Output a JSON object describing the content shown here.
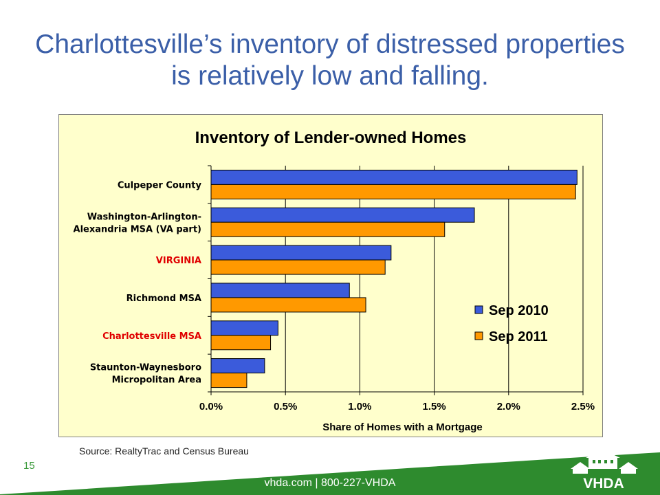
{
  "slide": {
    "title": "Charlottesville’s inventory of distressed properties is relatively low and falling.",
    "source": "Source:  RealtyTrac and Census Bureau",
    "page_number": "15",
    "footer": "vhda.com | 800-227-VHDA",
    "logo_text": "VHDA"
  },
  "colors": {
    "title": "#3b5fa8",
    "chart_bg": "#ffffcc",
    "sep2010": "#3b5bdb",
    "sep2011": "#ff9900",
    "highlight_label": "#e00000",
    "footer_green": "#2e8b2e"
  },
  "chart_data": {
    "type": "bar",
    "orientation": "horizontal",
    "title": "Inventory of Lender-owned Homes",
    "xlabel": "Share of Homes with a Mortgage",
    "ylabel": "",
    "xlim": [
      0,
      0.025
    ],
    "x_ticks": [
      "0.0%",
      "0.5%",
      "1.0%",
      "1.5%",
      "2.0%",
      "2.5%"
    ],
    "grid": "vertical",
    "legend_position": "lower-right inside",
    "categories": [
      "Culpeper County",
      "Washington-Arlington-\nAlexandria MSA (VA part)",
      "VIRGINIA",
      "Richmond MSA",
      "Charlottesville MSA",
      "Staunton-Waynesboro\nMicropolitan Area"
    ],
    "highlighted_categories": [
      "VIRGINIA",
      "Charlottesville MSA"
    ],
    "series": [
      {
        "name": "Sep 2010",
        "values": [
          0.0246,
          0.0177,
          0.0121,
          0.0093,
          0.0045,
          0.0036
        ]
      },
      {
        "name": "Sep 2011",
        "values": [
          0.0245,
          0.0157,
          0.0117,
          0.0104,
          0.004,
          0.0024
        ]
      }
    ]
  }
}
